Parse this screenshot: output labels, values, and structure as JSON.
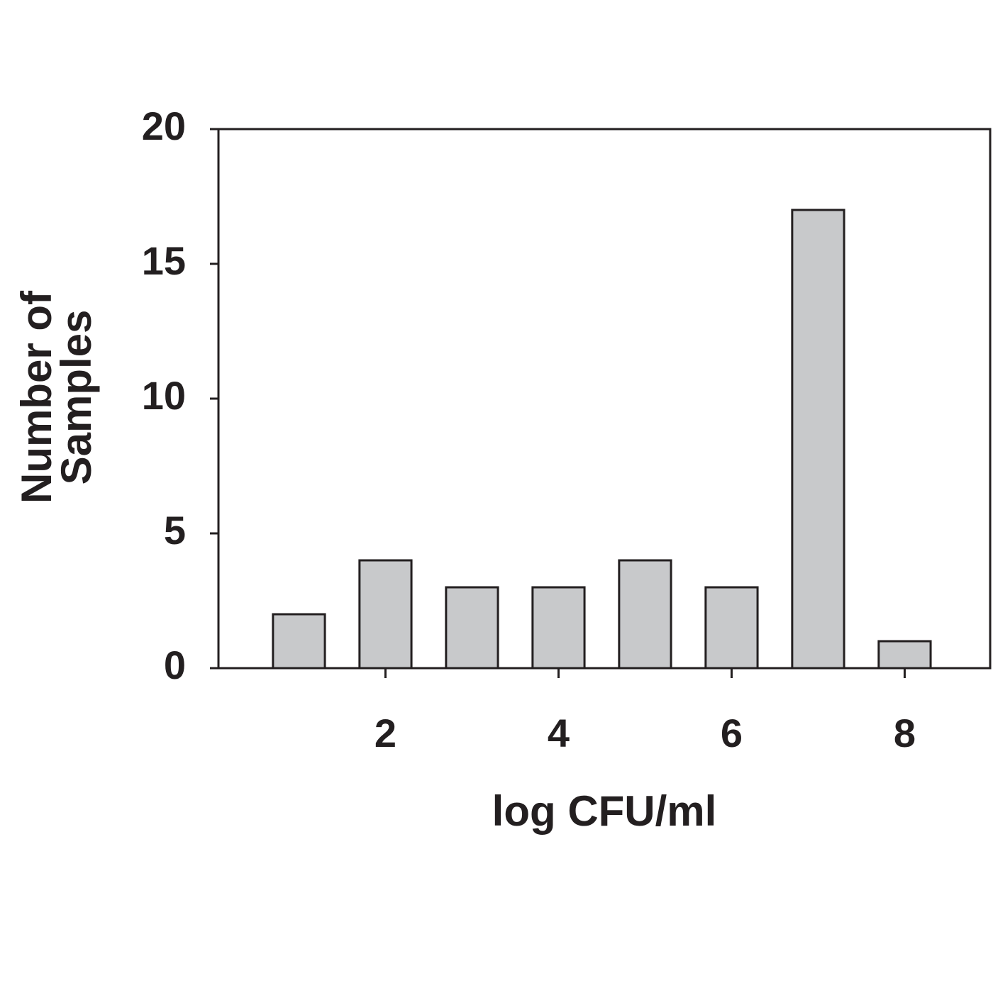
{
  "chart_data": {
    "type": "bar",
    "x_label": "log CFU/ml",
    "y_label": [
      "Number of",
      "Samples"
    ],
    "categories": [
      null,
      "2",
      null,
      "4",
      null,
      "6",
      null,
      "8"
    ],
    "values": [
      2,
      4,
      3,
      3,
      4,
      3,
      17,
      1
    ],
    "color": "#c8c9cb",
    "ylim": [
      0,
      20
    ],
    "yticks": [
      0,
      5,
      10,
      15,
      20
    ],
    "grid": false
  }
}
